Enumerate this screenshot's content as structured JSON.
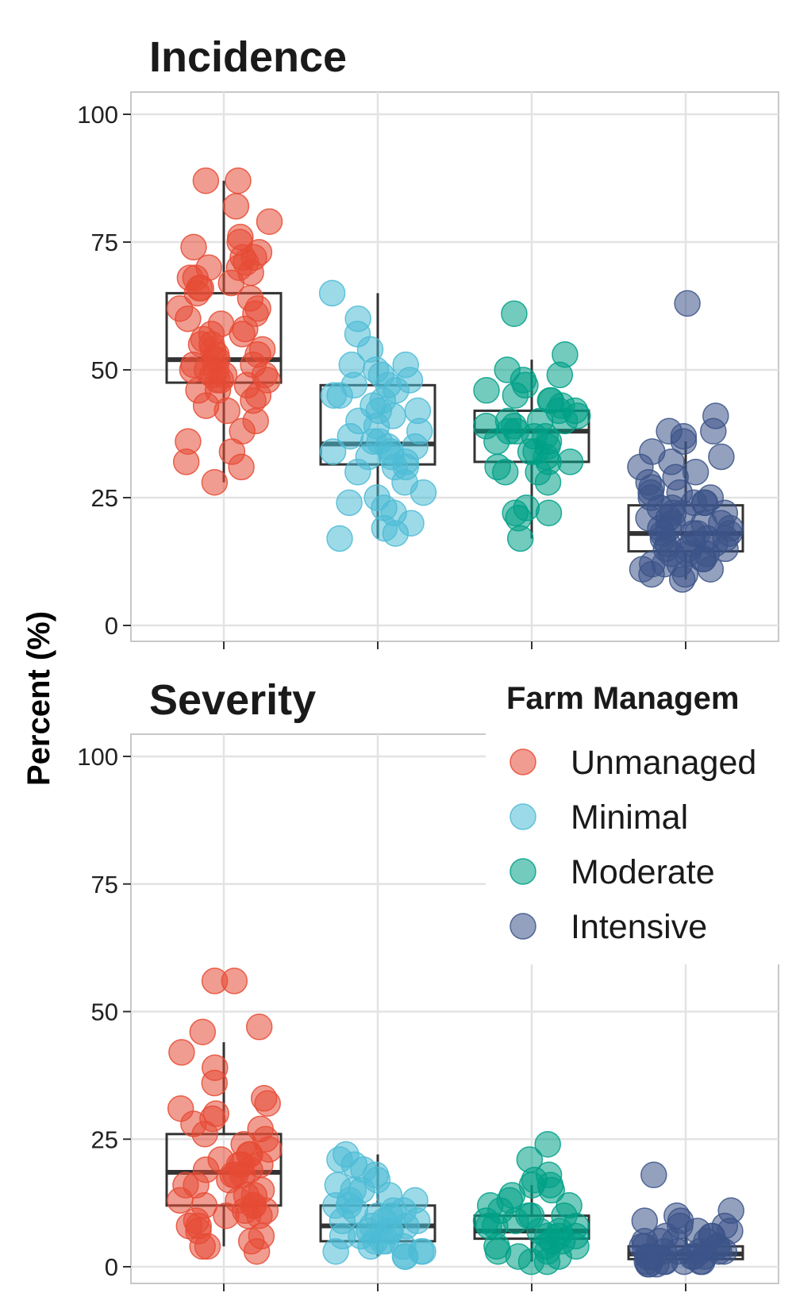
{
  "ylabel": "Percent (%)",
  "legend": {
    "title": "Farm Managem",
    "items": [
      {
        "label": "Unmanaged",
        "color": "#E64B35"
      },
      {
        "label": "Minimal",
        "color": "#4DBBD5"
      },
      {
        "label": "Moderate",
        "color": "#00A087"
      },
      {
        "label": "Intensive",
        "color": "#3C5488"
      }
    ]
  },
  "chart_data": [
    {
      "type": "box",
      "title": "Incidence",
      "ylabel": "Percent (%)",
      "ylim": [
        0,
        100
      ],
      "yticks": [
        "0",
        "25",
        "50",
        "75",
        "100"
      ],
      "grid": true,
      "categories": [
        "Unmanaged",
        "Minimal",
        "Moderate",
        "Intensive"
      ],
      "boxes": [
        {
          "name": "Unmanaged",
          "color": "#E64B35",
          "min": 28,
          "q1": 47.5,
          "median": 52,
          "q3": 65,
          "max": 87
        },
        {
          "name": "Minimal",
          "color": "#4DBBD5",
          "min": 17,
          "q1": 31.5,
          "median": 35.5,
          "q3": 47,
          "max": 65
        },
        {
          "name": "Moderate",
          "color": "#00A087",
          "min": 17,
          "q1": 32,
          "median": 38,
          "q3": 42,
          "max": 52
        },
        {
          "name": "Intensive",
          "color": "#3C5488",
          "min": 9,
          "q1": 14.5,
          "median": 18,
          "q3": 23.5,
          "max": 36
        }
      ],
      "points": [
        [
          87,
          87,
          82,
          79,
          76,
          75,
          74,
          73,
          72,
          72,
          71,
          70,
          69,
          68,
          67,
          66,
          65,
          64,
          62,
          61,
          60,
          59,
          58,
          57,
          56,
          55,
          54,
          53,
          53,
          52,
          51,
          51,
          50,
          50,
          49,
          49,
          48,
          48,
          47,
          46,
          46,
          45,
          44,
          43,
          42,
          40,
          38,
          36,
          34,
          32,
          31,
          28,
          57,
          55,
          54,
          52,
          50,
          49,
          48,
          62,
          66,
          68,
          70
        ],
        [
          65,
          60,
          57,
          54,
          51,
          51,
          50,
          49,
          48,
          47,
          46,
          45,
          44,
          43,
          42,
          41,
          40,
          39,
          38,
          37,
          36,
          35,
          35,
          34,
          34,
          33,
          33,
          32,
          31,
          30,
          28,
          26,
          25,
          24,
          23,
          22,
          20,
          19,
          18,
          17,
          42,
          45,
          47,
          36,
          31
        ],
        [
          61,
          53,
          50,
          49,
          48,
          47,
          46,
          45,
          44,
          43,
          42,
          41,
          40,
          40,
          39,
          39,
          38,
          37,
          37,
          36,
          35,
          34,
          33,
          32,
          32,
          31,
          30,
          30,
          28,
          23,
          22,
          22,
          21,
          17,
          40,
          38,
          36,
          34,
          42,
          44
        ],
        [
          63,
          41,
          38,
          38,
          37,
          36,
          34,
          33,
          32,
          31,
          30,
          29,
          28,
          27,
          26,
          25,
          25,
          24,
          24,
          23,
          23,
          22,
          22,
          21,
          21,
          20,
          20,
          19,
          19,
          18,
          18,
          18,
          17,
          17,
          16,
          16,
          15,
          15,
          14,
          14,
          13,
          13,
          12,
          12,
          11,
          11,
          10,
          10,
          9,
          22,
          20,
          18,
          16,
          14,
          12,
          26,
          24,
          19,
          17,
          15
        ]
      ]
    },
    {
      "type": "box",
      "title": "Severity",
      "ylabel": "Percent (%)",
      "ylim": [
        0,
        100
      ],
      "yticks": [
        "0",
        "25",
        "50",
        "75",
        "100"
      ],
      "grid": true,
      "categories": [
        "Unmanaged",
        "Minimal",
        "Moderate",
        "Intensive"
      ],
      "boxes": [
        {
          "name": "Unmanaged",
          "color": "#E64B35",
          "min": 4,
          "q1": 12,
          "median": 18.5,
          "q3": 26,
          "max": 44
        },
        {
          "name": "Minimal",
          "color": "#4DBBD5",
          "min": 2,
          "q1": 5,
          "median": 8,
          "q3": 12,
          "max": 22
        },
        {
          "name": "Moderate",
          "color": "#00A087",
          "min": 1,
          "q1": 5.5,
          "median": 7,
          "q3": 10,
          "max": 16
        },
        {
          "name": "Intensive",
          "color": "#3C5488",
          "min": 0.5,
          "q1": 1.5,
          "median": 2.5,
          "q3": 4,
          "max": 8
        }
      ],
      "points": [
        [
          56,
          56,
          47,
          46,
          42,
          39,
          36,
          33,
          32,
          31,
          30,
          29,
          28,
          27,
          26,
          25,
          24,
          23,
          22,
          21,
          20,
          20,
          19,
          19,
          18,
          18,
          17,
          16,
          15,
          14,
          13,
          13,
          12,
          12,
          11,
          11,
          10,
          10,
          9,
          8,
          7,
          6,
          5,
          4,
          4,
          3,
          22,
          20,
          18,
          16,
          14,
          12,
          10,
          8
        ],
        [
          22,
          21,
          20,
          19,
          18,
          17,
          16,
          15,
          14,
          13,
          12,
          12,
          11,
          11,
          10,
          10,
          9,
          9,
          8,
          8,
          7,
          7,
          6,
          6,
          5,
          5,
          4,
          4,
          3,
          3,
          2,
          2,
          15,
          13,
          11,
          9,
          7,
          5,
          3
        ],
        [
          24,
          21,
          18,
          17,
          16,
          16,
          15,
          14,
          13,
          12,
          11,
          10,
          10,
          9,
          9,
          8,
          8,
          7,
          7,
          6,
          6,
          5,
          5,
          4,
          4,
          3,
          3,
          2,
          2,
          1,
          1,
          12,
          10,
          8,
          6,
          4
        ],
        [
          18,
          11,
          10,
          9,
          9,
          8,
          8,
          7,
          7,
          6,
          6,
          5,
          5,
          5,
          4,
          4,
          4,
          3,
          3,
          3,
          3,
          2,
          2,
          2,
          2,
          1,
          1,
          1,
          1,
          0.5,
          0.5,
          0.5,
          6,
          4,
          2,
          1,
          3,
          5,
          2,
          1
        ]
      ]
    }
  ]
}
